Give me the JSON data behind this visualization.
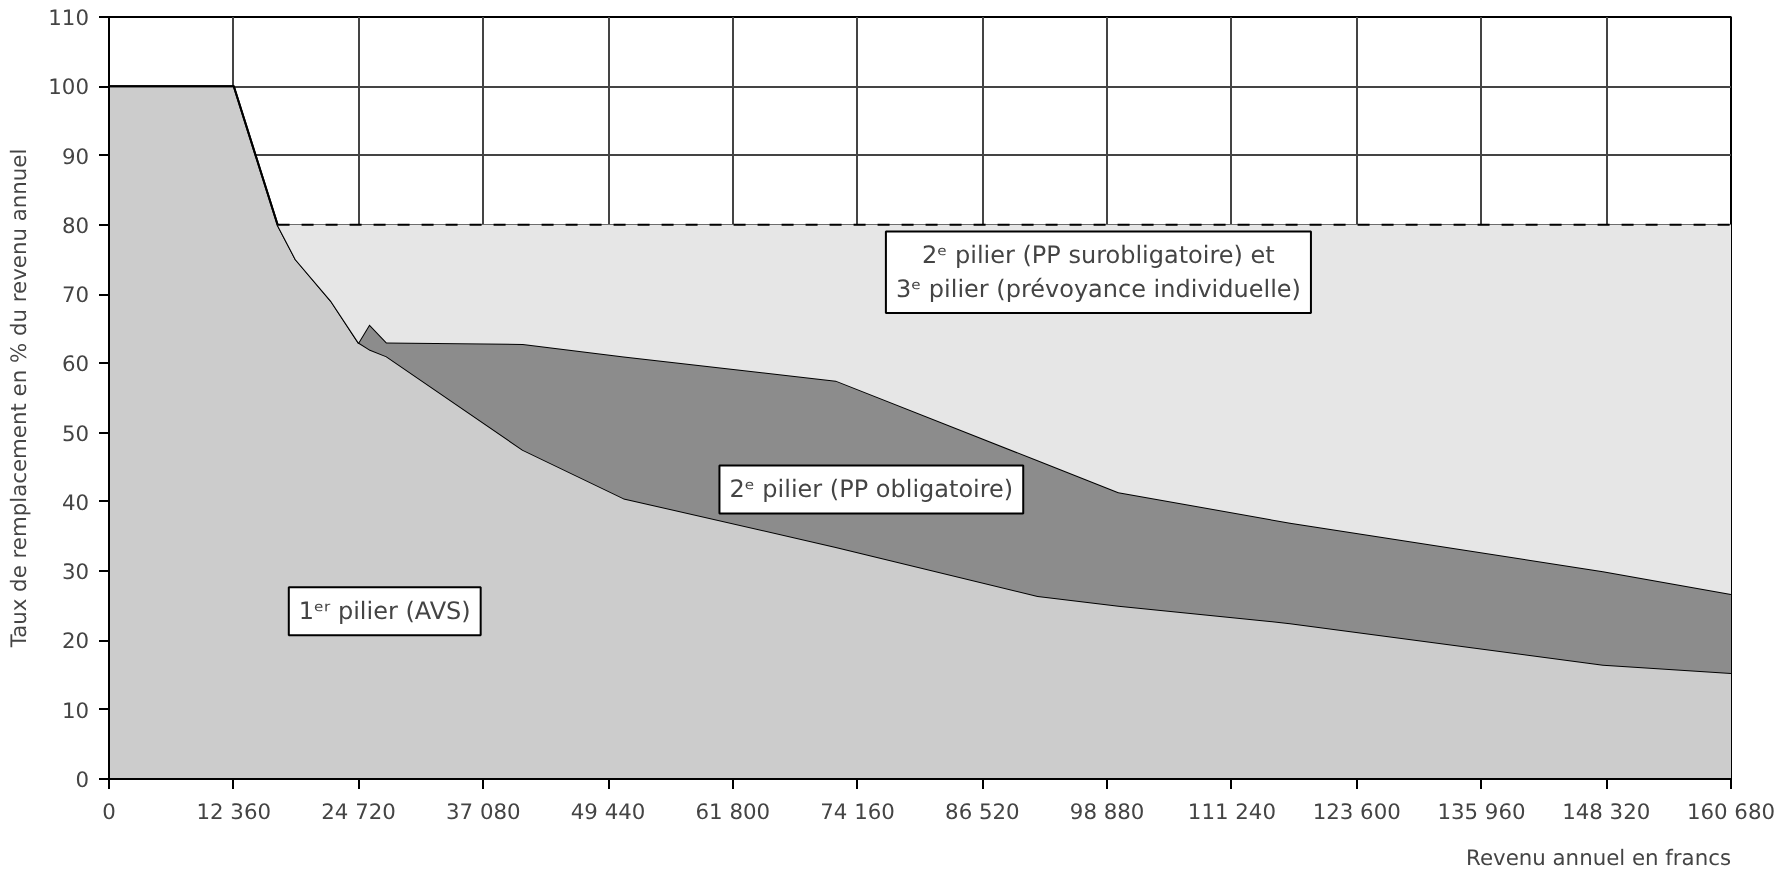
{
  "chart_data": {
    "type": "area",
    "stacked": true,
    "ylabel": "Taux de remplacement en % du revenu annuel",
    "xlabel": "Revenu annuel en francs",
    "x": [
      0,
      12360,
      16700,
      18500,
      22000,
      24720,
      25800,
      27500,
      41000,
      51000,
      72000,
      92000,
      100000,
      117000,
      148000,
      160680
    ],
    "series": [
      {
        "name": "1ᵉʳ pilier (AVS)",
        "color": "#cccccc",
        "line_style": "solid",
        "values": [
          100,
          100,
          80,
          75,
          69,
          63,
          62,
          61,
          47.5,
          40.5,
          33.5,
          26.4,
          25,
          22.5,
          16.5,
          15.3
        ]
      },
      {
        "name": "2ᵉ pilier (PP obligatoire)",
        "color": "#8c8c8c",
        "line_style": "solid",
        "values": [
          0,
          0,
          0,
          0,
          0,
          0,
          3.6,
          2,
          15.3,
          20.5,
          24,
          19.6,
          16.4,
          14.5,
          13.5,
          11.4
        ]
      },
      {
        "name": "2ᵉ pilier (PP surobligatoire) et\n3ᵉ pilier (prévoyance individuelle)",
        "color": "#e6e6e6",
        "line_style": "dashed",
        "values": [
          null,
          null,
          0,
          5,
          11,
          17,
          14.4,
          17,
          17.2,
          19,
          22.5,
          34,
          38.6,
          43,
          50,
          53.3
        ]
      }
    ],
    "xlim": [
      0,
      160680
    ],
    "ylim": [
      0,
      110
    ],
    "xticks": [
      0,
      {
        "value": 12360,
        "label": "12 360"
      },
      {
        "value": 24720,
        "label": "24 720"
      },
      {
        "value": 37080,
        "label": "37 080"
      },
      {
        "value": 49440,
        "label": "49 440"
      },
      {
        "value": 61800,
        "label": "61 800"
      },
      {
        "value": 74160,
        "label": "74 160"
      },
      {
        "value": 86520,
        "label": "86 520"
      },
      {
        "value": 98880,
        "label": "98 880"
      },
      {
        "value": 111240,
        "label": "111 240"
      },
      {
        "value": 123600,
        "label": "123 600"
      },
      {
        "value": 135960,
        "label": "135 960"
      },
      {
        "value": 148320,
        "label": "148 320"
      },
      {
        "value": 160680,
        "label": "160 680"
      }
    ],
    "yticks": [
      0,
      10,
      20,
      30,
      40,
      50,
      60,
      70,
      80,
      90,
      100,
      110
    ],
    "grid": true
  }
}
